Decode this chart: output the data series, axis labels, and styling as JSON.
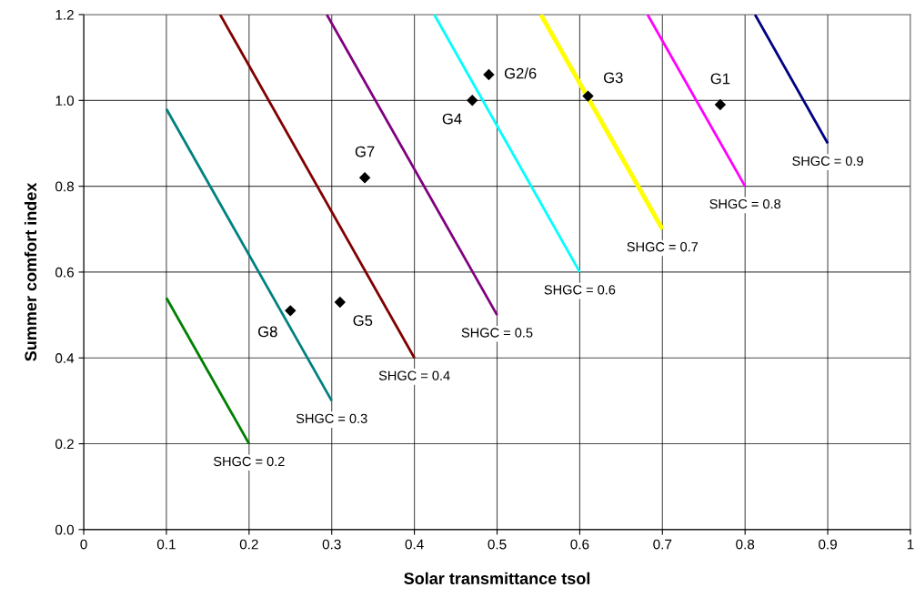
{
  "chart_data": {
    "type": "line",
    "xlabel": "Solar transmittance tsol",
    "ylabel": "Summer comfort index",
    "xlim": [
      0,
      1
    ],
    "xticks": [
      0,
      0.1,
      0.2,
      0.3,
      0.4,
      0.5,
      0.6,
      0.7,
      0.8,
      0.9,
      1
    ],
    "ylim": [
      0,
      1.2
    ],
    "yticks": [
      {
        "value": 0,
        "label": "0.0"
      },
      {
        "value": 0.2,
        "label": "0.2"
      },
      {
        "value": 0.4,
        "label": "0.4"
      },
      {
        "value": 0.6,
        "label": "0.6"
      },
      {
        "value": 0.8,
        "label": "0.8"
      },
      {
        "value": 1.0,
        "label": "1.0"
      },
      {
        "value": 1.2,
        "label": "1.2"
      }
    ],
    "grid": true,
    "legend": false,
    "marker": "none",
    "line_style": "solid",
    "series": [
      {
        "name": "SHGC = 0.2",
        "color": "#008000",
        "x": [
          0.1,
          0.2
        ],
        "values": [
          0.54,
          0.2
        ]
      },
      {
        "name": "SHGC = 0.3",
        "color": "#008080",
        "x": [
          0.1,
          0.3
        ],
        "values": [
          0.98,
          0.3
        ]
      },
      {
        "name": "SHGC = 0.4",
        "color": "#800000",
        "x": [
          0.165,
          0.4
        ],
        "values": [
          1.2,
          0.4
        ]
      },
      {
        "name": "SHGC = 0.5",
        "color": "#800080",
        "x": [
          0.294,
          0.5
        ],
        "values": [
          1.2,
          0.5
        ]
      },
      {
        "name": "SHGC = 0.6",
        "color": "#00ffff",
        "x": [
          0.424,
          0.6
        ],
        "values": [
          1.2,
          0.6
        ]
      },
      {
        "name": "SHGC = 0.7",
        "color": "#ffff00",
        "x": [
          0.553,
          0.7
        ],
        "values": [
          1.2,
          0.7
        ]
      },
      {
        "name": "SHGC = 0.8",
        "color": "#ff00ff",
        "x": [
          0.682,
          0.8
        ],
        "values": [
          1.2,
          0.8
        ]
      },
      {
        "name": "SHGC = 0.9",
        "color": "#000080",
        "x": [
          0.812,
          0.9
        ],
        "values": [
          1.2,
          0.9
        ]
      },
      {
        "type": "scatter",
        "marker": "diamond",
        "color": "#000000",
        "x": [
          0.77,
          0.49,
          0.61,
          0.47,
          0.31,
          0.34,
          0.25
        ],
        "values": [
          0.99,
          1.06,
          1.01,
          1.0,
          0.53,
          0.82,
          0.51
        ]
      }
    ],
    "annotations": [
      {
        "text": "G1",
        "x": 0.77,
        "y": 0.99
      },
      {
        "text": "G2/6",
        "x": 0.49,
        "y": 1.06
      },
      {
        "text": "G3",
        "x": 0.61,
        "y": 1.01
      },
      {
        "text": "G4",
        "x": 0.47,
        "y": 1.0
      },
      {
        "text": "G5",
        "x": 0.31,
        "y": 0.53
      },
      {
        "text": "G7",
        "x": 0.34,
        "y": 0.82
      },
      {
        "text": "G8",
        "x": 0.25,
        "y": 0.51
      }
    ]
  }
}
